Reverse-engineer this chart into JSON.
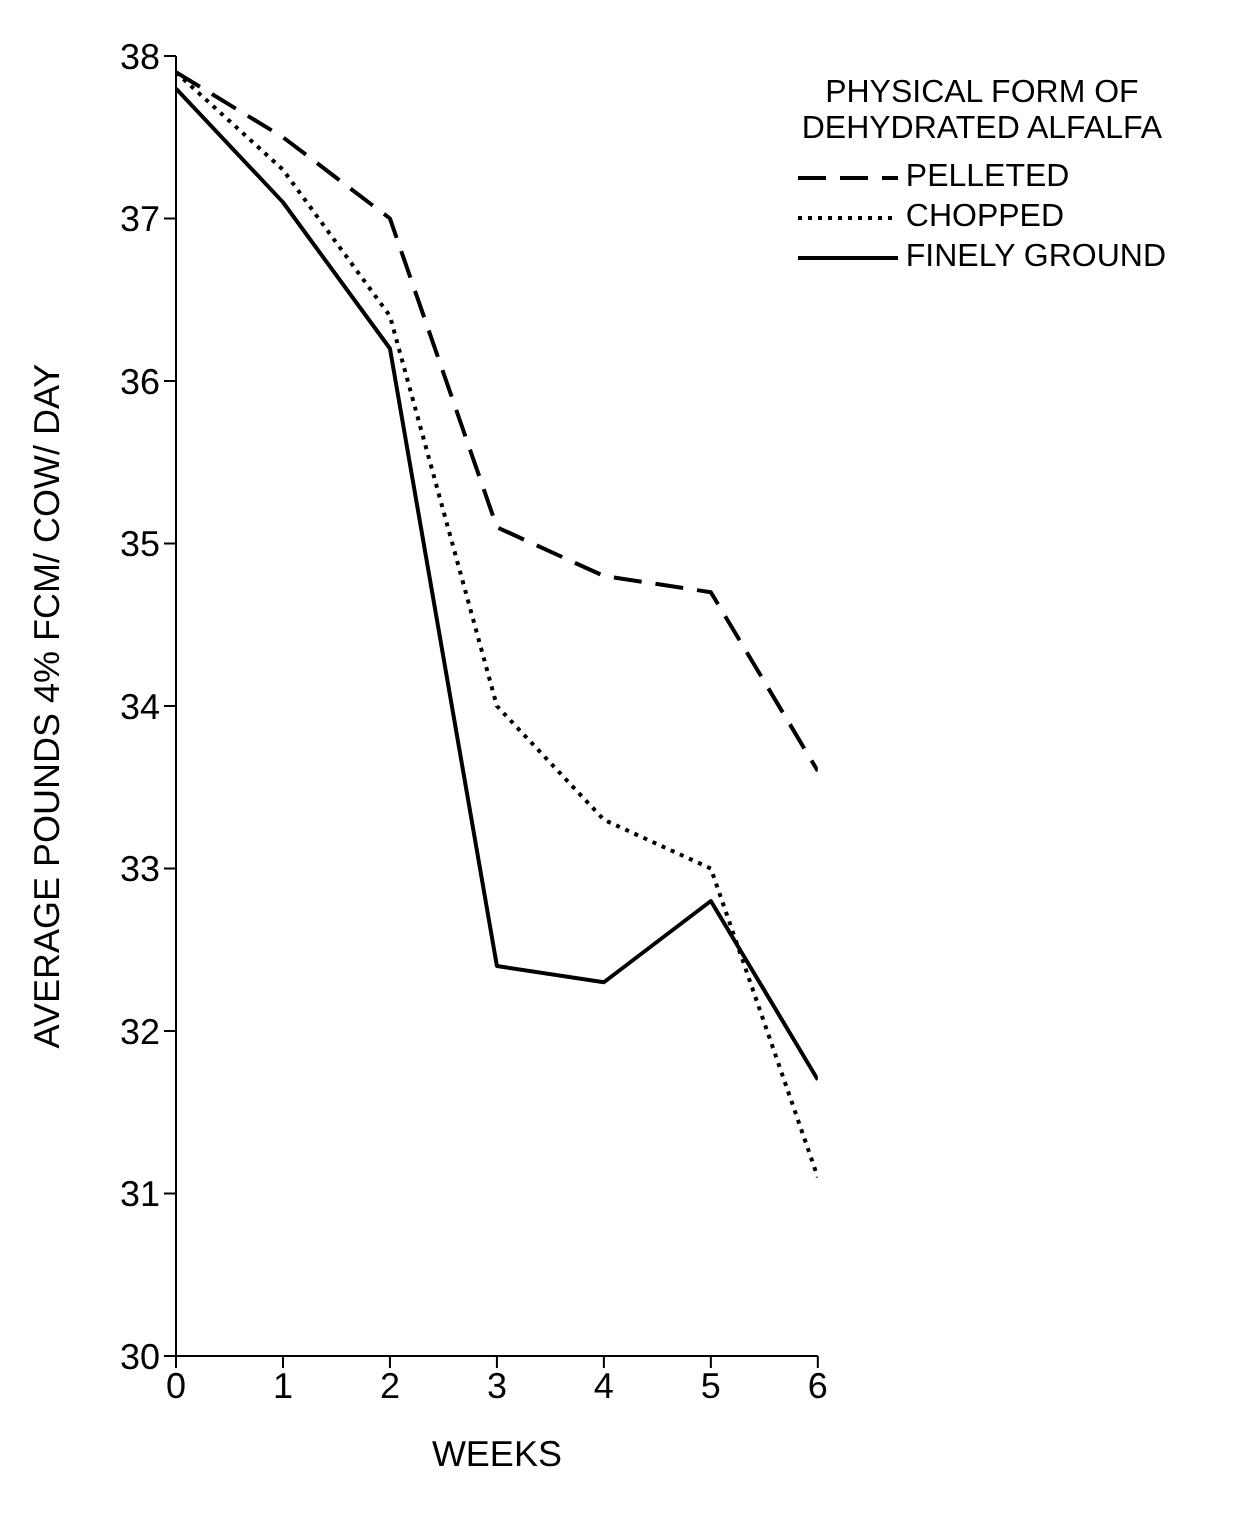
{
  "chart_data": {
    "type": "line",
    "xlabel": "WEEKS",
    "ylabel": "AVERAGE POUNDS 4% FCM/ COW/ DAY",
    "legend_title": "PHYSICAL FORM OF\nDEHYDRATED ALFALFA",
    "x": [
      0,
      1,
      2,
      3,
      4,
      5,
      6
    ],
    "series": [
      {
        "name": "PELLETED",
        "color": "#000000",
        "line_style": "dashed",
        "values": [
          37.9,
          37.5,
          37.0,
          35.1,
          34.8,
          34.7,
          33.6
        ]
      },
      {
        "name": "CHOPPED",
        "color": "#000000",
        "line_style": "dotted",
        "values": [
          37.9,
          37.3,
          36.4,
          34.0,
          33.3,
          33.0,
          31.1
        ]
      },
      {
        "name": "FINELY GROUND",
        "color": "#000000",
        "line_style": "solid",
        "values": [
          37.8,
          37.1,
          36.2,
          32.4,
          32.3,
          32.8,
          31.7
        ]
      }
    ],
    "xlim": [
      0,
      6
    ],
    "xticks": [
      0,
      1,
      2,
      3,
      4,
      5,
      6
    ],
    "ylim": [
      30,
      38
    ],
    "yticks": [
      30,
      31,
      32,
      33,
      34,
      35,
      36,
      37,
      38
    ],
    "grid": false,
    "legend": "top right",
    "marker": "none"
  }
}
